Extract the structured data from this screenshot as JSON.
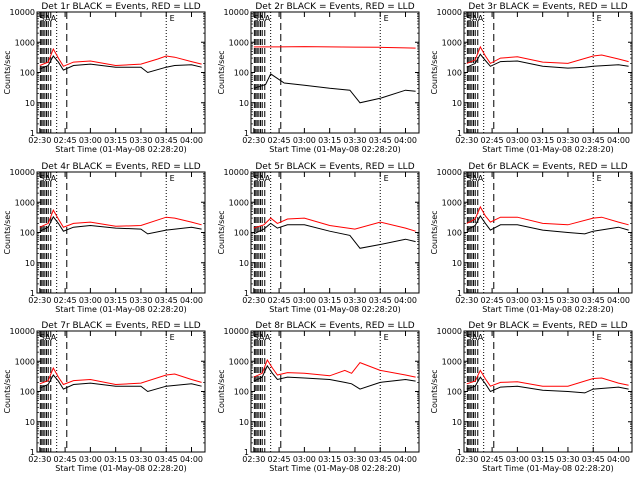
{
  "chart_data": [
    {
      "type": "line",
      "title": "Det 1r  BLACK = Events, RED = LLD",
      "xlabel": "Start Time (01-May-08 02:28:20)",
      "ylabel": "Counts/sec",
      "x_ticks": [
        "02:30",
        "02:45",
        "03:00",
        "03:15",
        "03:30",
        "03:45",
        "04:00"
      ],
      "y_ticks": [
        "1",
        "10",
        "100",
        "1000",
        "10000"
      ],
      "ylim": [
        1,
        10000
      ],
      "y_scale": "log",
      "xlim": [
        "02:28:20",
        "04:08"
      ],
      "markers": [
        "SAA",
        "E"
      ],
      "series": [
        {
          "color": "#ff0000",
          "x": [
            "02:30",
            "02:35",
            "02:38",
            "02:41",
            "02:44",
            "02:50",
            "03:00",
            "03:15",
            "03:30",
            "03:40",
            "03:45",
            "03:50",
            "04:00",
            "04:06"
          ],
          "y": [
            170,
            220,
            600,
            300,
            160,
            220,
            240,
            170,
            190,
            280,
            350,
            320,
            230,
            190
          ]
        },
        {
          "color": "#000000",
          "x": [
            "02:30",
            "02:35",
            "02:38",
            "02:41",
            "02:44",
            "02:50",
            "03:00",
            "03:15",
            "03:30",
            "03:34",
            "03:45",
            "03:50",
            "04:00",
            "04:06"
          ],
          "y": [
            130,
            170,
            350,
            220,
            120,
            170,
            190,
            150,
            150,
            100,
            150,
            170,
            180,
            150
          ]
        }
      ]
    },
    {
      "type": "line",
      "title": "Det 2r  BLACK = Events, RED = LLD",
      "xlabel": "Start Time (01-May-08 02:28:20)",
      "ylabel": "Counts/sec",
      "x_ticks": [
        "02:30",
        "02:45",
        "03:00",
        "03:15",
        "03:30",
        "03:45",
        "04:00"
      ],
      "y_ticks": [
        "1",
        "10",
        "100",
        "1000",
        "10000"
      ],
      "ylim": [
        1,
        10000
      ],
      "y_scale": "log",
      "xlim": [
        "02:28:20",
        "04:08"
      ],
      "markers": [
        "SAA",
        "E"
      ],
      "series": [
        {
          "color": "#ff0000",
          "x": [
            "02:30",
            "02:45",
            "03:00",
            "03:15",
            "03:30",
            "03:45",
            "04:00",
            "04:06"
          ],
          "y": [
            700,
            700,
            720,
            700,
            690,
            680,
            650,
            640
          ]
        },
        {
          "color": "#000000",
          "x": [
            "02:30",
            "02:37",
            "02:40",
            "02:48",
            "03:00",
            "03:15",
            "03:27",
            "03:33",
            "03:45",
            "04:00",
            "04:06"
          ],
          "y": [
            30,
            40,
            90,
            45,
            38,
            30,
            26,
            10,
            14,
            26,
            24
          ]
        }
      ]
    },
    {
      "type": "line",
      "title": "Det 3r  BLACK = Events, RED = LLD",
      "xlabel": "Start Time (01-May-08 02:28:20)",
      "ylabel": "Counts/sec",
      "x_ticks": [
        "02:30",
        "02:45",
        "03:00",
        "03:15",
        "03:30",
        "03:45",
        "04:00"
      ],
      "y_ticks": [
        "1",
        "10",
        "100",
        "1000",
        "10000"
      ],
      "ylim": [
        1,
        10000
      ],
      "y_scale": "log",
      "xlim": [
        "02:28:20",
        "04:08"
      ],
      "markers": [
        "SAA",
        "E"
      ],
      "series": [
        {
          "color": "#ff0000",
          "x": [
            "02:30",
            "02:35",
            "02:38",
            "02:41",
            "02:44",
            "02:50",
            "03:00",
            "03:15",
            "03:30",
            "03:45",
            "03:50",
            "04:00",
            "04:06"
          ],
          "y": [
            200,
            260,
            700,
            350,
            200,
            300,
            330,
            220,
            200,
            350,
            380,
            280,
            230
          ]
        },
        {
          "color": "#000000",
          "x": [
            "02:30",
            "02:35",
            "02:38",
            "02:41",
            "02:44",
            "02:50",
            "03:00",
            "03:15",
            "03:30",
            "03:40",
            "03:45",
            "04:00",
            "04:06"
          ],
          "y": [
            150,
            200,
            400,
            250,
            160,
            230,
            240,
            160,
            140,
            150,
            160,
            180,
            160
          ]
        }
      ]
    },
    {
      "type": "line",
      "title": "Det 4r  BLACK = Events, RED = LLD",
      "xlabel": "Start Time (01-May-08 02:28:20)",
      "ylabel": "Counts/sec",
      "x_ticks": [
        "02:30",
        "02:45",
        "03:00",
        "03:15",
        "03:30",
        "03:45",
        "04:00"
      ],
      "y_ticks": [
        "1",
        "10",
        "100",
        "1000",
        "10000"
      ],
      "ylim": [
        1,
        10000
      ],
      "y_scale": "log",
      "xlim": [
        "02:28:20",
        "04:08"
      ],
      "markers": [
        "SAA",
        "E"
      ],
      "series": [
        {
          "color": "#ff0000",
          "x": [
            "02:30",
            "02:35",
            "02:38",
            "02:41",
            "02:44",
            "02:50",
            "03:00",
            "03:15",
            "03:30",
            "03:45",
            "03:50",
            "04:00",
            "04:06"
          ],
          "y": [
            150,
            200,
            550,
            280,
            150,
            200,
            220,
            160,
            170,
            320,
            300,
            220,
            180
          ]
        },
        {
          "color": "#000000",
          "x": [
            "02:30",
            "02:35",
            "02:38",
            "02:41",
            "02:44",
            "02:50",
            "03:00",
            "03:15",
            "03:30",
            "03:34",
            "03:45",
            "04:00",
            "04:06"
          ],
          "y": [
            110,
            150,
            330,
            200,
            110,
            150,
            170,
            140,
            130,
            90,
            120,
            150,
            130
          ]
        }
      ]
    },
    {
      "type": "line",
      "title": "Det 5r  BLACK = Events, RED = LLD",
      "xlabel": "Start Time (01-May-08 02:28:20)",
      "ylabel": "Counts/sec",
      "x_ticks": [
        "02:30",
        "02:45",
        "03:00",
        "03:15",
        "03:30",
        "03:45",
        "04:00"
      ],
      "y_ticks": [
        "1",
        "10",
        "100",
        "1000",
        "10000"
      ],
      "ylim": [
        1,
        10000
      ],
      "y_scale": "log",
      "xlim": [
        "02:28:20",
        "04:08"
      ],
      "markers": [
        "SAA",
        "E"
      ],
      "series": [
        {
          "color": "#ff0000",
          "x": [
            "02:30",
            "02:36",
            "02:40",
            "02:44",
            "02:50",
            "03:00",
            "03:15",
            "03:30",
            "03:45",
            "04:00",
            "04:06"
          ],
          "y": [
            140,
            180,
            300,
            200,
            280,
            300,
            170,
            130,
            220,
            140,
            110
          ]
        },
        {
          "color": "#000000",
          "x": [
            "02:30",
            "02:36",
            "02:40",
            "02:44",
            "02:50",
            "03:00",
            "03:15",
            "03:27",
            "03:33",
            "03:45",
            "04:00",
            "04:06"
          ],
          "y": [
            90,
            130,
            200,
            140,
            180,
            180,
            110,
            80,
            30,
            40,
            60,
            50
          ]
        }
      ]
    },
    {
      "type": "line",
      "title": "Det 6r  BLACK = Events, RED = LLD",
      "xlabel": "Start Time (01-May-08 02:28:20)",
      "ylabel": "Counts/sec",
      "x_ticks": [
        "02:30",
        "02:45",
        "03:00",
        "03:15",
        "03:30",
        "03:45",
        "04:00"
      ],
      "y_ticks": [
        "1",
        "10",
        "100",
        "1000",
        "10000"
      ],
      "ylim": [
        1,
        10000
      ],
      "y_scale": "log",
      "xlim": [
        "02:28:20",
        "04:08"
      ],
      "markers": [
        "SAA",
        "E"
      ],
      "series": [
        {
          "color": "#ff0000",
          "x": [
            "02:30",
            "02:35",
            "02:38",
            "02:41",
            "02:44",
            "02:50",
            "03:00",
            "03:15",
            "03:30",
            "03:45",
            "03:50",
            "04:00",
            "04:06"
          ],
          "y": [
            200,
            280,
            700,
            350,
            220,
            320,
            320,
            200,
            180,
            300,
            320,
            220,
            180
          ]
        },
        {
          "color": "#000000",
          "x": [
            "02:30",
            "02:35",
            "02:38",
            "02:41",
            "02:44",
            "02:50",
            "03:00",
            "03:15",
            "03:30",
            "03:40",
            "03:45",
            "04:00",
            "04:06"
          ],
          "y": [
            120,
            170,
            350,
            200,
            120,
            180,
            180,
            120,
            100,
            90,
            110,
            150,
            120
          ]
        }
      ]
    },
    {
      "type": "line",
      "title": "Det 7r  BLACK = Events, RED = LLD",
      "xlabel": "Start Time (01-May-08 02:28:20)",
      "ylabel": "Counts/sec",
      "x_ticks": [
        "02:30",
        "02:45",
        "03:00",
        "03:15",
        "03:30",
        "03:45",
        "04:00"
      ],
      "y_ticks": [
        "1",
        "10",
        "100",
        "1000",
        "10000"
      ],
      "ylim": [
        1,
        10000
      ],
      "y_scale": "log",
      "xlim": [
        "02:28:20",
        "04:08"
      ],
      "markers": [
        "SAA",
        "E"
      ],
      "series": [
        {
          "color": "#ff0000",
          "x": [
            "02:30",
            "02:35",
            "02:38",
            "02:41",
            "02:44",
            "02:50",
            "03:00",
            "03:15",
            "03:30",
            "03:45",
            "03:50",
            "04:00",
            "04:06"
          ],
          "y": [
            180,
            230,
            600,
            300,
            170,
            230,
            250,
            170,
            190,
            350,
            380,
            250,
            200
          ]
        },
        {
          "color": "#000000",
          "x": [
            "02:30",
            "02:35",
            "02:38",
            "02:41",
            "02:44",
            "02:50",
            "03:00",
            "03:15",
            "03:30",
            "03:34",
            "03:45",
            "04:00",
            "04:06"
          ],
          "y": [
            130,
            170,
            350,
            220,
            120,
            170,
            190,
            150,
            150,
            100,
            150,
            180,
            150
          ]
        }
      ]
    },
    {
      "type": "line",
      "title": "Det 8r  BLACK = Events, RED = LLD",
      "xlabel": "Start Time (01-May-08 02:28:20)",
      "ylabel": "Counts/sec",
      "x_ticks": [
        "02:30",
        "02:45",
        "03:00",
        "03:15",
        "03:30",
        "03:45",
        "04:00"
      ],
      "y_ticks": [
        "1",
        "10",
        "100",
        "1000",
        "10000"
      ],
      "ylim": [
        1,
        10000
      ],
      "y_scale": "log",
      "xlim": [
        "02:28:20",
        "04:08"
      ],
      "markers": [
        "SAA",
        "E"
      ],
      "series": [
        {
          "color": "#ff0000",
          "x": [
            "02:30",
            "02:35",
            "02:38",
            "02:41",
            "02:44",
            "02:50",
            "03:00",
            "03:15",
            "03:24",
            "03:28",
            "03:33",
            "03:45",
            "04:00",
            "04:06"
          ],
          "y": [
            300,
            400,
            1100,
            600,
            350,
            420,
            400,
            330,
            500,
            400,
            900,
            500,
            350,
            300
          ]
        },
        {
          "color": "#000000",
          "x": [
            "02:30",
            "02:35",
            "02:38",
            "02:41",
            "02:44",
            "02:50",
            "03:00",
            "03:15",
            "03:24",
            "03:28",
            "03:33",
            "03:45",
            "04:00",
            "04:06"
          ],
          "y": [
            220,
            300,
            700,
            400,
            250,
            300,
            280,
            250,
            200,
            180,
            120,
            200,
            250,
            220
          ]
        }
      ]
    },
    {
      "type": "line",
      "title": "Det 9r  BLACK = Events, RED = LLD",
      "xlabel": "Start Time (01-May-08 02:28:20)",
      "ylabel": "Counts/sec",
      "x_ticks": [
        "02:30",
        "02:45",
        "03:00",
        "03:15",
        "03:30",
        "03:45",
        "04:00"
      ],
      "y_ticks": [
        "1",
        "10",
        "100",
        "1000",
        "10000"
      ],
      "ylim": [
        1,
        10000
      ],
      "y_scale": "log",
      "xlim": [
        "02:28:20",
        "04:08"
      ],
      "markers": [
        "SAA",
        "E"
      ],
      "series": [
        {
          "color": "#ff0000",
          "x": [
            "02:30",
            "02:35",
            "02:38",
            "02:41",
            "02:44",
            "02:50",
            "03:00",
            "03:15",
            "03:30",
            "03:45",
            "03:50",
            "04:00",
            "04:06"
          ],
          "y": [
            180,
            220,
            500,
            260,
            150,
            200,
            210,
            150,
            150,
            270,
            280,
            190,
            160
          ]
        },
        {
          "color": "#000000",
          "x": [
            "02:30",
            "02:35",
            "02:38",
            "02:41",
            "02:44",
            "02:50",
            "03:00",
            "03:15",
            "03:30",
            "03:40",
            "03:45",
            "04:00",
            "04:06"
          ],
          "y": [
            120,
            150,
            300,
            180,
            100,
            140,
            150,
            110,
            100,
            90,
            120,
            140,
            120
          ]
        }
      ]
    }
  ]
}
